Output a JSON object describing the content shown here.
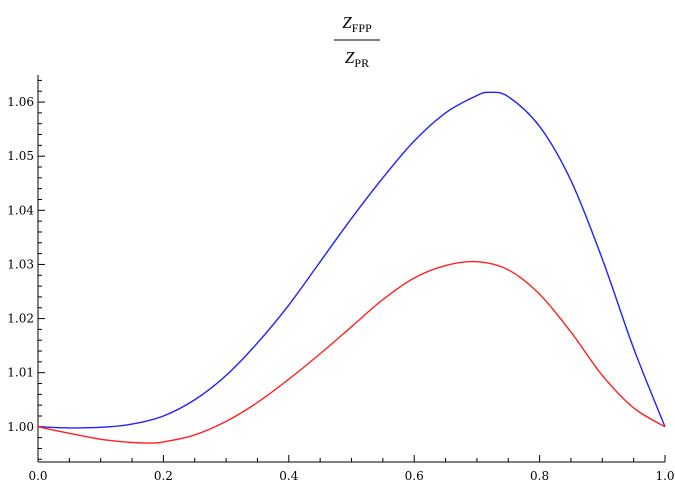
{
  "chart_data": {
    "type": "line",
    "title": {
      "numerator_main": "Z",
      "numerator_sub": "FPP",
      "denominator_main": "Z",
      "denominator_sub": "PR"
    },
    "xlabel": "",
    "ylabel": "",
    "xlim": [
      0.0,
      1.0
    ],
    "ylim": [
      0.9935,
      1.065
    ],
    "x_ticks_major": [
      0.0,
      0.2,
      0.4,
      0.6,
      0.8,
      1.0
    ],
    "x_tick_labels": [
      "0.0",
      "0.2",
      "0.4",
      "0.6",
      "0.8",
      "1.0"
    ],
    "y_ticks_major": [
      1.0,
      1.01,
      1.02,
      1.03,
      1.04,
      1.05,
      1.06
    ],
    "y_tick_labels": [
      "1.00",
      "1.01",
      "1.02",
      "1.03",
      "1.04",
      "1.05",
      "1.06"
    ],
    "grid": false,
    "series": [
      {
        "color": "#2020ff",
        "x": [
          0.0,
          0.05,
          0.1,
          0.15,
          0.2,
          0.25,
          0.3,
          0.35,
          0.4,
          0.45,
          0.5,
          0.55,
          0.6,
          0.65,
          0.7,
          0.72,
          0.75,
          0.8,
          0.85,
          0.9,
          0.95,
          1.0
        ],
        "y": [
          1.0,
          0.9998,
          0.9999,
          1.0005,
          1.002,
          1.005,
          1.0095,
          1.0155,
          1.0225,
          1.0305,
          1.0385,
          1.046,
          1.0528,
          1.058,
          1.0612,
          1.0618,
          1.061,
          1.0555,
          1.0455,
          1.031,
          1.0145,
          1.0
        ]
      },
      {
        "color": "#ff2020",
        "x": [
          0.0,
          0.05,
          0.1,
          0.15,
          0.18,
          0.2,
          0.25,
          0.3,
          0.35,
          0.4,
          0.45,
          0.5,
          0.55,
          0.6,
          0.65,
          0.7,
          0.75,
          0.8,
          0.85,
          0.9,
          0.95,
          1.0
        ],
        "y": [
          1.0,
          0.9988,
          0.9977,
          0.9971,
          0.997,
          0.9972,
          0.9985,
          1.001,
          1.0045,
          1.0088,
          1.0135,
          1.0185,
          1.0235,
          1.0275,
          1.0298,
          1.0305,
          1.029,
          1.0245,
          1.0175,
          1.0095,
          1.0035,
          1.0
        ]
      }
    ]
  },
  "colors": {
    "axis": "#000000",
    "background": "#ffffff"
  }
}
